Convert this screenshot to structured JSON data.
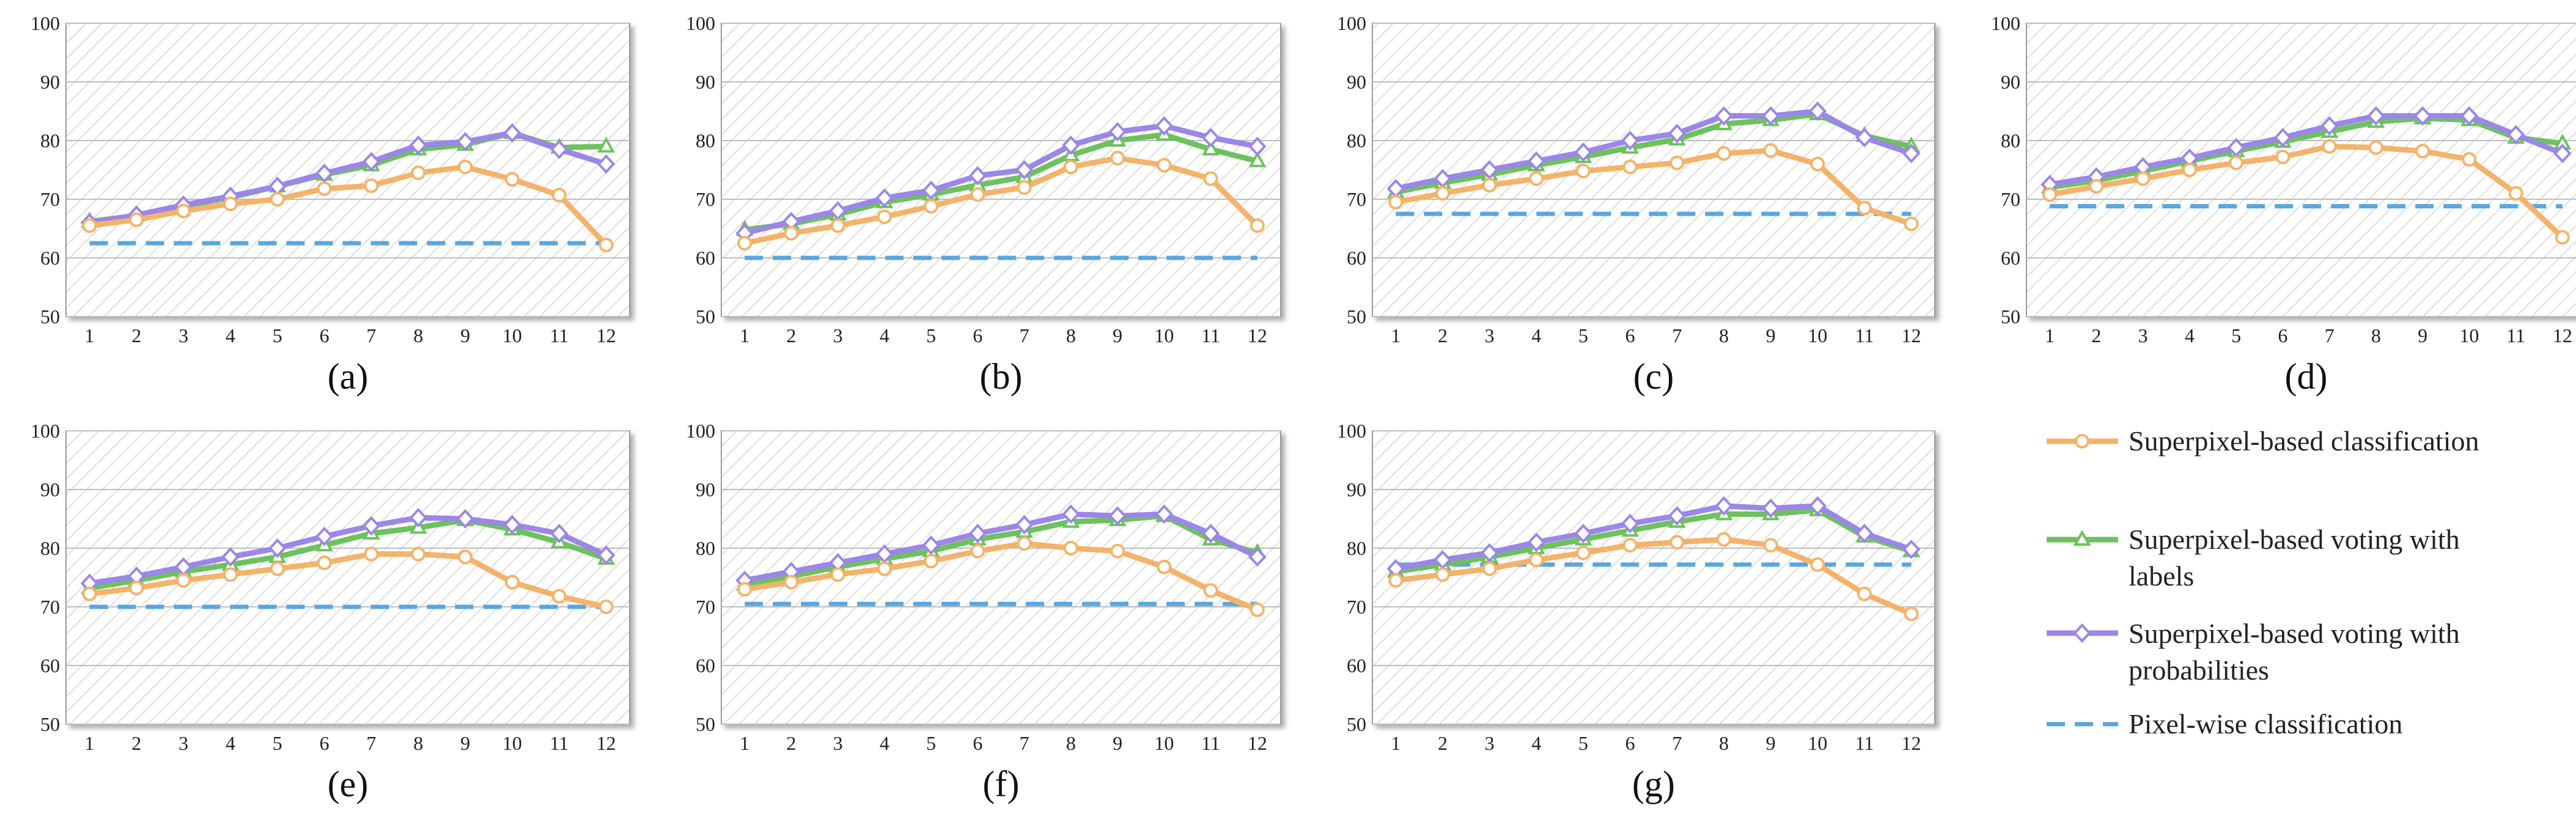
{
  "legend": [
    {
      "key": "classification",
      "lines": [
        "Superpixel-based classification"
      ],
      "color": "#f4b36a",
      "marker": "circle",
      "dashed": false
    },
    {
      "key": "voting_labels",
      "lines": [
        "Superpixel-based voting with",
        "labels"
      ],
      "color": "#6cc25e",
      "marker": "triangle",
      "dashed": false
    },
    {
      "key": "voting_probs",
      "lines": [
        "Superpixel-based voting with",
        "probabilities"
      ],
      "color": "#9c86e8",
      "marker": "diamond",
      "dashed": false
    },
    {
      "key": "pixelwise",
      "lines": [
        "Pixel-wise classification"
      ],
      "color": "#5aa6e0",
      "marker": "none",
      "dashed": true
    }
  ],
  "chart_data": [
    {
      "type": "line",
      "caption": "(a)",
      "x": [
        1,
        2,
        3,
        4,
        5,
        6,
        7,
        8,
        9,
        10,
        11,
        12
      ],
      "ylim": [
        50,
        100
      ],
      "yticks": [
        50,
        60,
        70,
        80,
        90,
        100
      ],
      "series": [
        {
          "key": "pixelwise",
          "values": [
            62.5,
            62.5,
            62.5,
            62.5,
            62.5,
            62.5,
            62.5,
            62.5,
            62.5,
            62.5,
            62.5,
            62.5
          ]
        },
        {
          "key": "voting_labels",
          "values": [
            66.2,
            67.2,
            68.8,
            70.3,
            72.2,
            74.2,
            75.8,
            78.5,
            79.3,
            81.3,
            78.8,
            79.0
          ]
        },
        {
          "key": "voting_probs",
          "values": [
            66.0,
            67.3,
            69.0,
            70.5,
            72.2,
            74.4,
            76.4,
            79.2,
            79.8,
            81.3,
            78.5,
            76.0
          ]
        },
        {
          "key": "classification",
          "values": [
            65.5,
            66.5,
            68.0,
            69.2,
            70.0,
            71.8,
            72.3,
            74.5,
            75.5,
            73.4,
            70.7,
            62.2
          ]
        }
      ]
    },
    {
      "type": "line",
      "caption": "(b)",
      "x": [
        1,
        2,
        3,
        4,
        5,
        6,
        7,
        8,
        9,
        10,
        11,
        12
      ],
      "ylim": [
        50,
        100
      ],
      "yticks": [
        50,
        60,
        70,
        80,
        90,
        100
      ],
      "series": [
        {
          "key": "pixelwise",
          "values": [
            60.0,
            60.0,
            60.0,
            60.0,
            60.0,
            60.0,
            60.0,
            60.0,
            60.0,
            60.0,
            60.0,
            60.0
          ]
        },
        {
          "key": "voting_labels",
          "values": [
            64.8,
            65.8,
            67.4,
            69.5,
            70.8,
            72.4,
            73.8,
            77.5,
            80.0,
            81.0,
            78.5,
            76.5
          ]
        },
        {
          "key": "voting_probs",
          "values": [
            64.2,
            66.2,
            68.0,
            70.2,
            71.5,
            74.0,
            75.0,
            79.2,
            81.5,
            82.5,
            80.5,
            79.0
          ]
        },
        {
          "key": "classification",
          "values": [
            62.5,
            64.2,
            65.5,
            67.0,
            68.8,
            70.8,
            72.0,
            75.5,
            77.0,
            75.8,
            73.5,
            65.5
          ]
        }
      ]
    },
    {
      "type": "line",
      "caption": "(c)",
      "x": [
        1,
        2,
        3,
        4,
        5,
        6,
        7,
        8,
        9,
        10,
        11,
        12
      ],
      "ylim": [
        50,
        100
      ],
      "yticks": [
        50,
        60,
        70,
        80,
        90,
        100
      ],
      "series": [
        {
          "key": "pixelwise",
          "values": [
            67.5,
            67.5,
            67.5,
            67.5,
            67.5,
            67.5,
            67.5,
            67.5,
            67.5,
            67.5,
            67.5,
            67.5
          ]
        },
        {
          "key": "voting_labels",
          "values": [
            71.2,
            72.8,
            74.2,
            75.8,
            77.2,
            78.8,
            80.2,
            82.8,
            83.5,
            84.5,
            80.8,
            79.0
          ]
        },
        {
          "key": "voting_probs",
          "values": [
            71.8,
            73.5,
            75.0,
            76.5,
            78.0,
            80.0,
            81.2,
            84.2,
            84.2,
            85.0,
            80.5,
            77.8
          ]
        },
        {
          "key": "classification",
          "values": [
            69.5,
            71.0,
            72.4,
            73.5,
            74.8,
            75.5,
            76.2,
            77.8,
            78.3,
            76.0,
            68.5,
            65.8
          ]
        }
      ]
    },
    {
      "type": "line",
      "caption": "(d)",
      "x": [
        1,
        2,
        3,
        4,
        5,
        6,
        7,
        8,
        9,
        10,
        11,
        12
      ],
      "ylim": [
        50,
        100
      ],
      "yticks": [
        50,
        60,
        70,
        80,
        90,
        100
      ],
      "series": [
        {
          "key": "pixelwise",
          "values": [
            68.8,
            68.8,
            68.8,
            68.8,
            68.8,
            68.8,
            68.8,
            68.8,
            68.8,
            68.8,
            68.8,
            68.8
          ]
        },
        {
          "key": "voting_labels",
          "values": [
            72.0,
            73.2,
            74.8,
            76.5,
            78.2,
            79.8,
            81.5,
            83.2,
            83.8,
            83.5,
            80.5,
            79.5
          ]
        },
        {
          "key": "voting_probs",
          "values": [
            72.5,
            73.8,
            75.5,
            77.0,
            78.8,
            80.5,
            82.5,
            84.2,
            84.2,
            84.2,
            81.0,
            77.8
          ]
        },
        {
          "key": "classification",
          "values": [
            70.8,
            72.2,
            73.5,
            75.0,
            76.2,
            77.2,
            79.0,
            78.8,
            78.2,
            76.8,
            71.0,
            63.5
          ]
        }
      ]
    },
    {
      "type": "line",
      "caption": "(e)",
      "x": [
        1,
        2,
        3,
        4,
        5,
        6,
        7,
        8,
        9,
        10,
        11,
        12
      ],
      "ylim": [
        50,
        100
      ],
      "yticks": [
        50,
        60,
        70,
        80,
        90,
        100
      ],
      "series": [
        {
          "key": "pixelwise",
          "values": [
            70.0,
            70.0,
            70.0,
            70.0,
            70.0,
            70.0,
            70.0,
            70.0,
            70.0,
            70.0,
            70.0,
            70.0
          ]
        },
        {
          "key": "voting_labels",
          "values": [
            73.2,
            74.5,
            76.0,
            77.2,
            78.5,
            80.5,
            82.5,
            83.5,
            84.8,
            83.2,
            81.0,
            78.2
          ]
        },
        {
          "key": "voting_probs",
          "values": [
            74.0,
            75.2,
            76.8,
            78.5,
            80.0,
            82.0,
            83.8,
            85.2,
            85.0,
            84.0,
            82.5,
            78.8
          ]
        },
        {
          "key": "classification",
          "values": [
            72.2,
            73.2,
            74.5,
            75.5,
            76.5,
            77.5,
            79.0,
            79.0,
            78.5,
            74.2,
            71.8,
            70.0
          ]
        }
      ]
    },
    {
      "type": "line",
      "caption": "(f)",
      "x": [
        1,
        2,
        3,
        4,
        5,
        6,
        7,
        8,
        9,
        10,
        11,
        12
      ],
      "ylim": [
        50,
        100
      ],
      "yticks": [
        50,
        60,
        70,
        80,
        90,
        100
      ],
      "series": [
        {
          "key": "pixelwise",
          "values": [
            70.5,
            70.5,
            70.5,
            70.5,
            70.5,
            70.5,
            70.5,
            70.5,
            70.5,
            70.5,
            70.5,
            70.5
          ]
        },
        {
          "key": "voting_labels",
          "values": [
            73.8,
            75.2,
            76.8,
            78.2,
            79.5,
            81.5,
            82.8,
            84.5,
            84.8,
            85.5,
            81.5,
            79.2
          ]
        },
        {
          "key": "voting_probs",
          "values": [
            74.5,
            76.0,
            77.5,
            79.0,
            80.5,
            82.5,
            84.0,
            85.8,
            85.5,
            85.8,
            82.5,
            78.5
          ]
        },
        {
          "key": "classification",
          "values": [
            73.0,
            74.2,
            75.5,
            76.5,
            77.8,
            79.5,
            80.8,
            80.0,
            79.5,
            76.8,
            72.8,
            69.5
          ]
        }
      ]
    },
    {
      "type": "line",
      "caption": "(g)",
      "x": [
        1,
        2,
        3,
        4,
        5,
        6,
        7,
        8,
        9,
        10,
        11,
        12
      ],
      "ylim": [
        50,
        100
      ],
      "yticks": [
        50,
        60,
        70,
        80,
        90,
        100
      ],
      "series": [
        {
          "key": "pixelwise",
          "values": [
            77.2,
            77.2,
            77.2,
            77.2,
            77.2,
            77.2,
            77.2,
            77.2,
            77.2,
            77.2,
            77.2,
            77.2
          ]
        },
        {
          "key": "voting_labels",
          "values": [
            76.0,
            77.2,
            78.5,
            80.0,
            81.5,
            83.0,
            84.5,
            85.8,
            85.8,
            86.5,
            82.0,
            79.5
          ]
        },
        {
          "key": "voting_probs",
          "values": [
            76.5,
            78.0,
            79.2,
            81.0,
            82.5,
            84.2,
            85.5,
            87.2,
            86.8,
            87.2,
            82.5,
            79.8
          ]
        },
        {
          "key": "classification",
          "values": [
            74.5,
            75.5,
            76.5,
            78.0,
            79.2,
            80.5,
            81.0,
            81.5,
            80.5,
            77.2,
            72.2,
            68.8
          ]
        }
      ]
    }
  ]
}
